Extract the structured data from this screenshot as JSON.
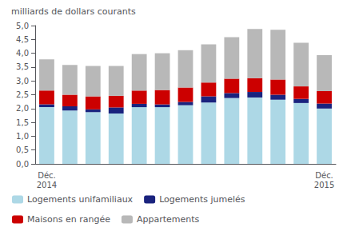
{
  "chart_data": {
    "type": "bar",
    "stacked": true,
    "grid": false,
    "legend": "lower left",
    "ylabel": "milliards de dollars courants",
    "categories": [
      "Déc.\n2014",
      null,
      null,
      null,
      null,
      null,
      null,
      null,
      null,
      null,
      null,
      null,
      "Déc.\n2015"
    ],
    "series": [
      {
        "name": "Logements unifamiliaux",
        "color": "#add8e6",
        "values": [
          2.05,
          1.93,
          1.87,
          1.82,
          2.05,
          2.05,
          2.12,
          2.22,
          2.38,
          2.4,
          2.32,
          2.2,
          2.0
        ]
      },
      {
        "name": "Logements jumelés",
        "color": "#1a237e",
        "values": [
          0.1,
          0.15,
          0.1,
          0.22,
          0.12,
          0.1,
          0.12,
          0.22,
          0.18,
          0.2,
          0.18,
          0.15,
          0.18
        ]
      },
      {
        "name": "Maisons en rangée",
        "color": "#cc0000",
        "values": [
          0.5,
          0.42,
          0.47,
          0.42,
          0.48,
          0.52,
          0.52,
          0.5,
          0.52,
          0.5,
          0.55,
          0.45,
          0.45
        ]
      },
      {
        "name": "Appartements",
        "color": "#b8b8b8",
        "values": [
          1.13,
          1.08,
          1.1,
          1.08,
          1.32,
          1.33,
          1.35,
          1.38,
          1.5,
          1.78,
          1.8,
          1.58,
          1.3
        ]
      }
    ],
    "ylim": [
      0,
      5.0
    ],
    "yticks": [
      {
        "value": 0.0,
        "label": "0,0"
      },
      {
        "value": 0.5,
        "label": "0,5"
      },
      {
        "value": 1.0,
        "label": "1,0"
      },
      {
        "value": 1.5,
        "label": "1,5"
      },
      {
        "value": 2.0,
        "label": "2,0"
      },
      {
        "value": 2.5,
        "label": "2,5"
      },
      {
        "value": 3.0,
        "label": "3,0"
      },
      {
        "value": 3.5,
        "label": "3,5"
      },
      {
        "value": 4.0,
        "label": "4,0"
      },
      {
        "value": 4.5,
        "label": "4,5"
      },
      {
        "value": 5.0,
        "label": "5,0"
      }
    ]
  }
}
